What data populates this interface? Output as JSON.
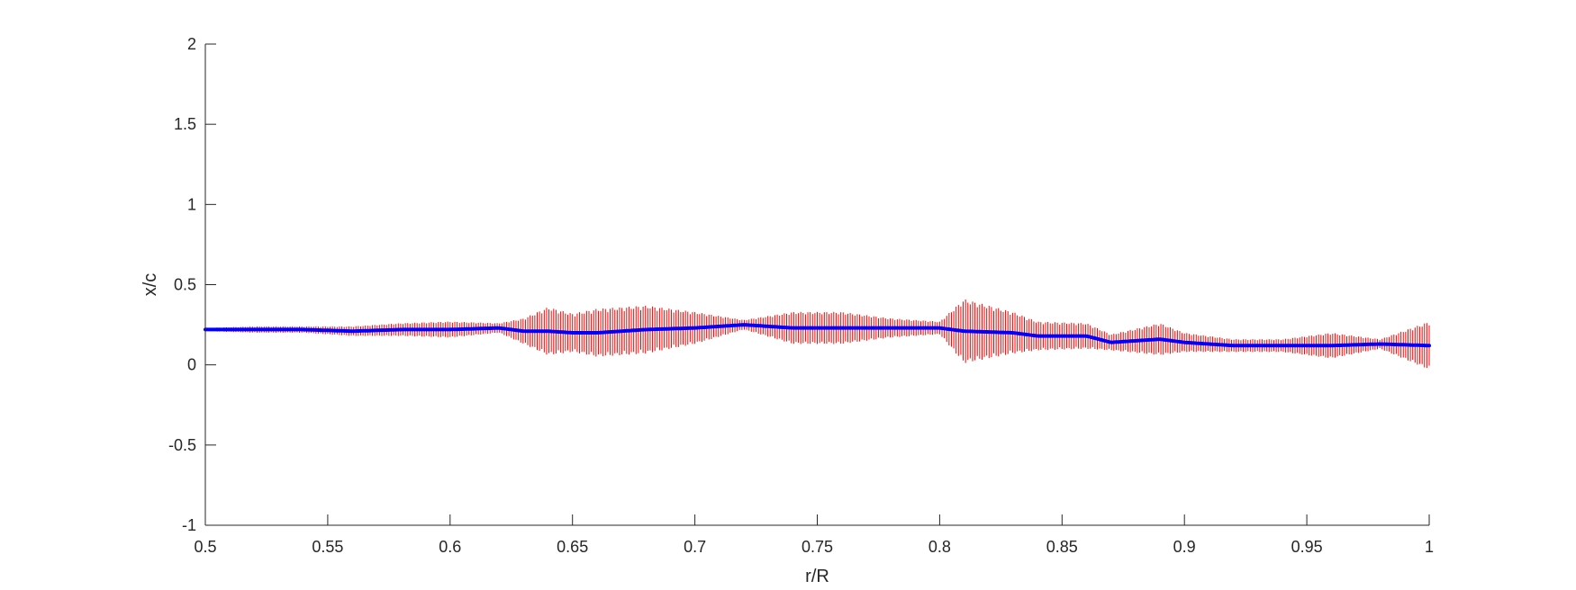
{
  "chart_data": {
    "type": "line",
    "title": "",
    "xlabel": "r/R",
    "ylabel": "x/c",
    "xlim": [
      0.5,
      1
    ],
    "ylim": [
      -1,
      2
    ],
    "xticks": [
      0.5,
      0.55,
      0.6,
      0.65,
      0.7,
      0.75,
      0.8,
      0.85,
      0.9,
      0.95,
      1
    ],
    "xtick_labels": [
      "0.5",
      "0.55",
      "0.6",
      "0.65",
      "0.7",
      "0.75",
      "0.8",
      "0.85",
      "0.9",
      "0.95",
      "1"
    ],
    "yticks": [
      -1,
      -0.5,
      0,
      0.5,
      1,
      1.5,
      2
    ],
    "ytick_labels": [
      "-1",
      "-0.5",
      "0",
      "0.5",
      "1",
      "1.5",
      "2"
    ],
    "grid": false,
    "colors": {
      "mean": "#0000ff",
      "error_bars": "#ff0000",
      "axes": "#262626"
    },
    "series": [
      {
        "style": "mean line with vertical error bars",
        "x": [
          0.5,
          0.52,
          0.54,
          0.56,
          0.58,
          0.6,
          0.62,
          0.63,
          0.64,
          0.65,
          0.66,
          0.68,
          0.7,
          0.72,
          0.74,
          0.76,
          0.78,
          0.8,
          0.81,
          0.83,
          0.84,
          0.86,
          0.87,
          0.89,
          0.9,
          0.92,
          0.94,
          0.96,
          0.98,
          1.0
        ],
        "y": [
          0.22,
          0.22,
          0.22,
          0.21,
          0.22,
          0.22,
          0.23,
          0.21,
          0.21,
          0.2,
          0.2,
          0.22,
          0.23,
          0.25,
          0.23,
          0.23,
          0.23,
          0.23,
          0.21,
          0.2,
          0.18,
          0.18,
          0.14,
          0.16,
          0.14,
          0.12,
          0.12,
          0.12,
          0.13,
          0.12
        ],
        "error": [
          0.01,
          0.02,
          0.02,
          0.03,
          0.04,
          0.05,
          0.03,
          0.08,
          0.15,
          0.12,
          0.15,
          0.15,
          0.1,
          0.03,
          0.1,
          0.1,
          0.06,
          0.04,
          0.2,
          0.13,
          0.09,
          0.08,
          0.05,
          0.1,
          0.06,
          0.04,
          0.04,
          0.08,
          0.03,
          0.15
        ]
      }
    ]
  }
}
